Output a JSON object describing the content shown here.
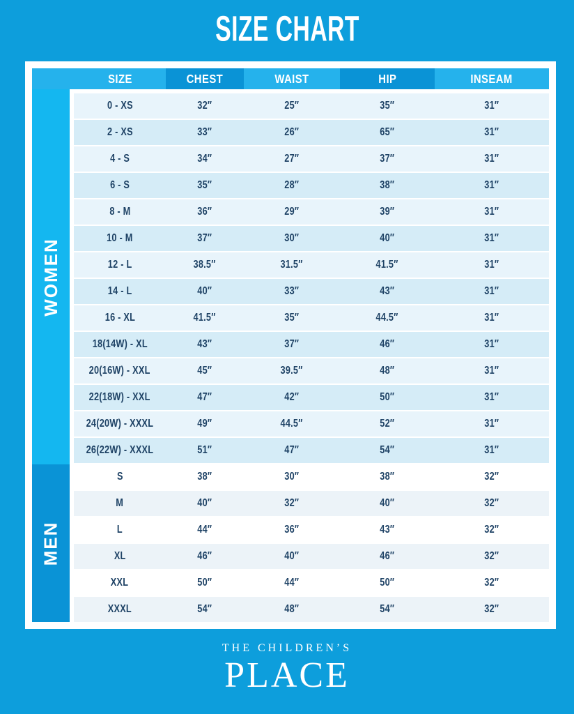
{
  "title": "SIZE CHART",
  "logo": {
    "top": "THE CHILDREN’S",
    "bottom": "PLACE"
  },
  "colors": {
    "bg": "#0D9EDC",
    "header-light": "#25B2EC",
    "header-dark": "#0A93D6",
    "side-women": "#14B7F0",
    "side-men": "#0A93D6",
    "row-a": "#E8F4FB",
    "row-b": "#D5ECF7",
    "men-a": "#FFFFFF",
    "men-b": "#ECF3F8",
    "ink": "#1E4265"
  },
  "chart_data": {
    "type": "table",
    "title": "SIZE CHART",
    "columns": [
      "SIZE",
      "CHEST",
      "WAIST",
      "HIP",
      "INSEAM"
    ],
    "sections": [
      {
        "name": "WOMEN",
        "rows": [
          [
            "0 - XS",
            "32″",
            "25″",
            "35″",
            "31″"
          ],
          [
            "2 - XS",
            "33″",
            "26″",
            "65″",
            "31″"
          ],
          [
            "4 - S",
            "34″",
            "27″",
            "37″",
            "31″"
          ],
          [
            "6 - S",
            "35″",
            "28″",
            "38″",
            "31″"
          ],
          [
            "8 - M",
            "36″",
            "29″",
            "39″",
            "31″"
          ],
          [
            "10 - M",
            "37″",
            "30″",
            "40″",
            "31″"
          ],
          [
            "12 - L",
            "38.5″",
            "31.5″",
            "41.5″",
            "31″"
          ],
          [
            "14 - L",
            "40″",
            "33″",
            "43″",
            "31″"
          ],
          [
            "16 - XL",
            "41.5″",
            "35″",
            "44.5″",
            "31″"
          ],
          [
            "18(14W) - XL",
            "43″",
            "37″",
            "46″",
            "31″"
          ],
          [
            "20(16W) - XXL",
            "45″",
            "39.5″",
            "48″",
            "31″"
          ],
          [
            "22(18W) - XXL",
            "47″",
            "42″",
            "50″",
            "31″"
          ],
          [
            "24(20W) - XXXL",
            "49″",
            "44.5″",
            "52″",
            "31″"
          ],
          [
            "26(22W) - XXXL",
            "51″",
            "47″",
            "54″",
            "31″"
          ]
        ]
      },
      {
        "name": "MEN",
        "rows": [
          [
            "S",
            "38″",
            "30″",
            "38″",
            "32″"
          ],
          [
            "M",
            "40″",
            "32″",
            "40″",
            "32″"
          ],
          [
            "L",
            "44″",
            "36″",
            "43″",
            "32″"
          ],
          [
            "XL",
            "46″",
            "40″",
            "46″",
            "32″"
          ],
          [
            "XXL",
            "50″",
            "44″",
            "50″",
            "32″"
          ],
          [
            "XXXL",
            "54″",
            "48″",
            "54″",
            "32″"
          ]
        ]
      }
    ]
  }
}
